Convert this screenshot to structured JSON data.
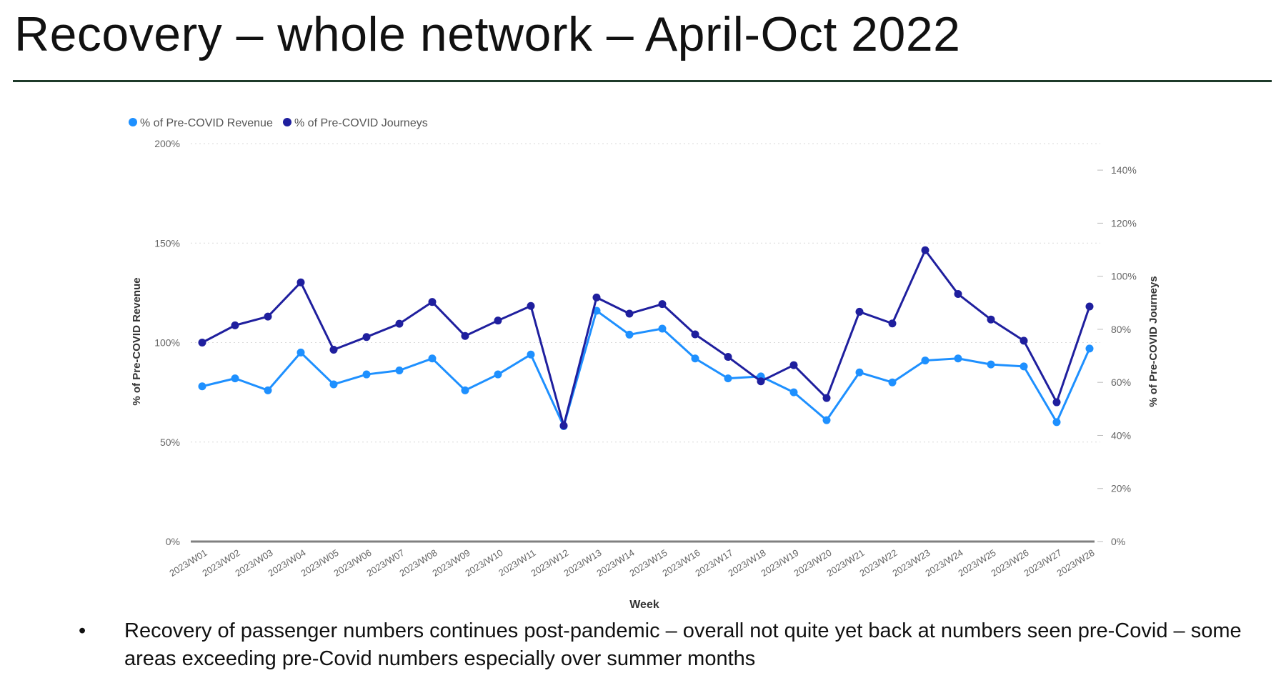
{
  "slide": {
    "title": "Recovery – whole network – April-Oct 2022",
    "bullets": [
      "Recovery of passenger numbers continues post-pandemic – overall not quite yet back at numbers seen pre-Covid – some areas exceeding pre-Covid numbers especially over summer months"
    ],
    "bullet_symbol": "•"
  },
  "colors": {
    "revenue": "#1e90ff",
    "journeys": "#1f1f9e",
    "grid": "#d9d9d9",
    "axis": "#7f7f7f",
    "tick_text": "#666666",
    "label_text": "#333333"
  },
  "chart_data": {
    "type": "line",
    "xlabel": "Week",
    "ylabel_left": "% of Pre-COVID Revenue",
    "ylabel_right": "% of Pre-COVID Journeys",
    "legend_position": "top-left",
    "grid": true,
    "categories": [
      "2023/W01",
      "2023/W02",
      "2023/W03",
      "2023/W04",
      "2023/W05",
      "2023/W06",
      "2023/W07",
      "2023/W08",
      "2023/W09",
      "2023/W10",
      "2023/W11",
      "2023/W12",
      "2023/W13",
      "2023/W14",
      "2023/W15",
      "2023/W16",
      "2023/W17",
      "2023/W18",
      "2023/W19",
      "2023/W20",
      "2023/W21",
      "2023/W22",
      "2023/W23",
      "2023/W24",
      "2023/W25",
      "2023/W26",
      "2023/W27",
      "2023/W28"
    ],
    "y_left": {
      "range": [
        0,
        200
      ],
      "ticks": [
        "0%",
        "50%",
        "100%",
        "150%",
        "200%"
      ],
      "tick_values": [
        0,
        50,
        100,
        150,
        200
      ]
    },
    "y_right": {
      "range": [
        0,
        150
      ],
      "ticks": [
        "0%",
        "20%",
        "40%",
        "60%",
        "80%",
        "100%",
        "120%",
        "140%"
      ],
      "tick_values": [
        0,
        20,
        40,
        60,
        80,
        100,
        120,
        140
      ]
    },
    "series": [
      {
        "name": "% of Pre-COVID Revenue",
        "axis": "left",
        "values": [
          78,
          82,
          76,
          95,
          79,
          84,
          86,
          92,
          76,
          84,
          94,
          58,
          116,
          104,
          107,
          92,
          82,
          83,
          75,
          61,
          85,
          80,
          91,
          92,
          89,
          88,
          60,
          97
        ]
      },
      {
        "name": "% of Pre-COVID Journeys",
        "axis": "right",
        "values": [
          75,
          81.5,
          84.8,
          97.7,
          72.3,
          77.1,
          82.1,
          90.3,
          77.5,
          83.3,
          88.8,
          43.7,
          92,
          85.9,
          89.5,
          78.1,
          69.6,
          60.4,
          66.5,
          54.1,
          86.6,
          82.2,
          109.8,
          93.3,
          83.7,
          75.7,
          52.5,
          88.6
        ]
      }
    ]
  }
}
